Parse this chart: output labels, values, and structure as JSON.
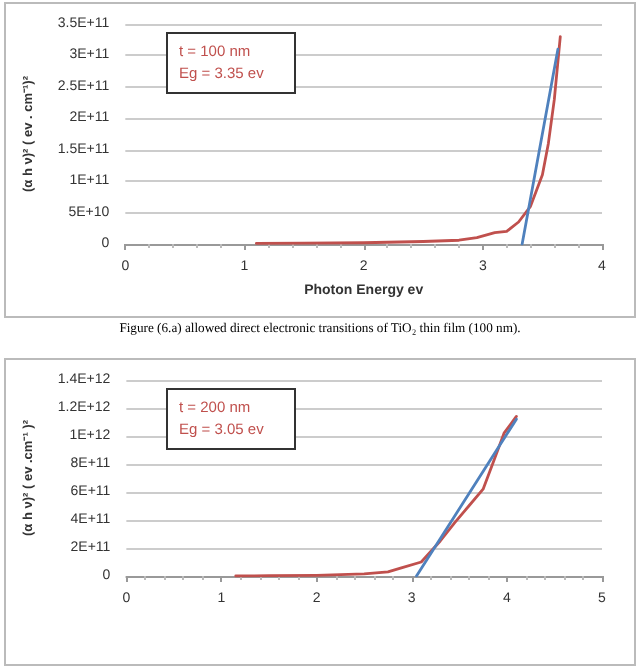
{
  "chart_data": [
    {
      "type": "line",
      "title": "Figure (6.a) allowed direct electronic transitions of TiO₂ thin film (100 nm).",
      "xlabel": "Photon Energy ev",
      "ylabel": "(α h ν)² ( ev . cm⁻¹)²",
      "annotations": [
        "t = 100 nm",
        "Eg = 3.35 ev"
      ],
      "xlim": [
        0,
        4
      ],
      "xticks": [
        0,
        1,
        2,
        3,
        4
      ],
      "ylim": [
        0,
        350000000000
      ],
      "yticks": [
        0,
        {
          "value": 50000000000,
          "label": "5E+10"
        },
        {
          "value": 100000000000,
          "label": "1E+11"
        },
        {
          "value": 150000000000,
          "label": "1.5E+11"
        },
        {
          "value": 200000000000,
          "label": "2E+11"
        },
        {
          "value": 250000000000,
          "label": "2.5E+11"
        },
        {
          "value": 300000000000,
          "label": "3E+11"
        },
        {
          "value": 350000000000,
          "label": "3.5E+11"
        }
      ],
      "grid": "y",
      "marker": "none",
      "line_style": "solid",
      "series": [
        {
          "color": "#c0504d",
          "x": [
            1.1,
            1.5,
            2,
            2.5,
            2.8,
            2.95,
            3.1,
            3.2,
            3.3,
            3.4,
            3.5,
            3.55,
            3.6,
            3.65
          ],
          "values": [
            1000000000,
            1500000000,
            2000000000,
            4000000000,
            6000000000,
            10000000000,
            18000000000,
            20000000000,
            35000000000,
            60000000000,
            110000000000,
            160000000000,
            230000000000,
            330000000000
          ]
        },
        {
          "color": "#4f81bd",
          "x": [
            3.33,
            3.63
          ],
          "values": [
            0,
            310000000000
          ]
        }
      ]
    },
    {
      "type": "line",
      "ylabel": "(α h ν)² ( ev .cm⁻¹ )²",
      "annotations": [
        "t = 200 nm",
        "Eg = 3.05 ev"
      ],
      "xlim": [
        0,
        5
      ],
      "xticks": [
        0,
        1,
        2,
        3,
        4,
        5
      ],
      "ylim": [
        0,
        1400000000000
      ],
      "yticks": [
        0,
        {
          "value": 200000000000,
          "label": "2E+11"
        },
        {
          "value": 400000000000,
          "label": "4E+11"
        },
        {
          "value": 600000000000,
          "label": "6E+11"
        },
        {
          "value": 800000000000,
          "label": "8E+11"
        },
        {
          "value": 1000000000000,
          "label": "1E+12"
        },
        {
          "value": 1200000000000,
          "label": "1.2E+12"
        },
        {
          "value": 1400000000000,
          "label": "1.4E+12"
        }
      ],
      "grid": "y",
      "marker": "none",
      "line_style": "solid",
      "series": [
        {
          "color": "#c0504d",
          "x": [
            1.15,
            1.5,
            2,
            2.5,
            2.75,
            2.9,
            3.1,
            3.3,
            3.45,
            3.6,
            3.75,
            3.85,
            3.97,
            4.1
          ],
          "values": [
            0,
            2000000000,
            5000000000,
            15000000000,
            30000000000,
            60000000000,
            100000000000,
            250000000000,
            380000000000,
            500000000000,
            620000000000,
            800000000000,
            1020000000000,
            1140000000000
          ]
        },
        {
          "color": "#4f81bd",
          "x": [
            3.05,
            4.1
          ],
          "values": [
            0,
            1120000000000
          ]
        }
      ]
    }
  ]
}
